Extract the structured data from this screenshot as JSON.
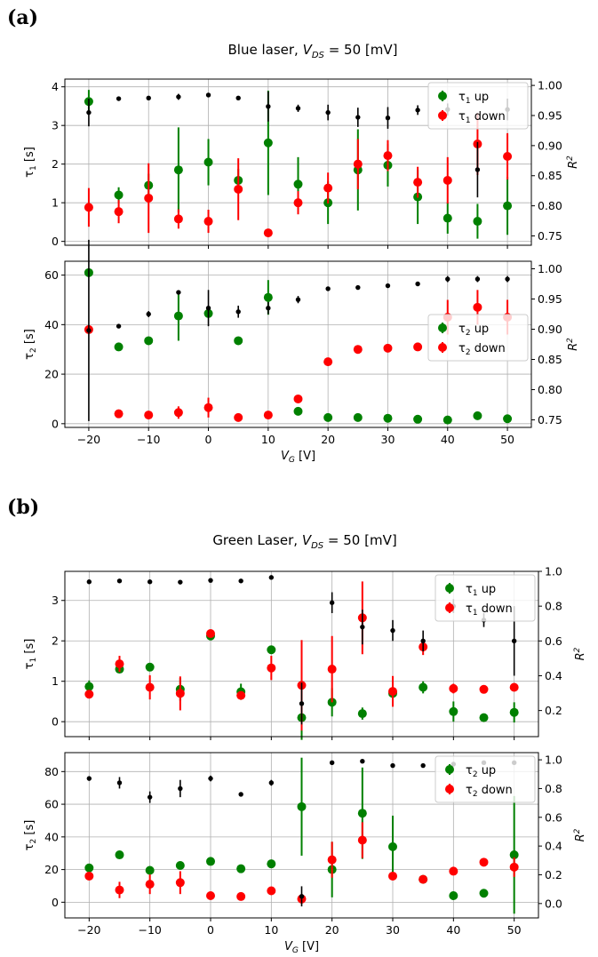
{
  "figure": {
    "panel_labels": [
      "(a)",
      "(b)"
    ],
    "colors": {
      "up": "#008000",
      "down": "#ff0000",
      "r2": "#000000",
      "grid": "#b0b0b0"
    }
  },
  "chart_data": [
    {
      "panel": "(a)",
      "title": "Blue laser, V_DS = 50 [mV]",
      "title_parts": {
        "before": "Blue laser, ",
        "var": "V",
        "sub": "DS",
        "after": " = 50 [mV]"
      },
      "subplots": [
        {
          "type": "scatter",
          "ylabel": {
            "main": "τ",
            "sub": "1",
            "unit": " [s]"
          },
          "ylabel_right": {
            "main": "R",
            "sup": "2"
          },
          "xlim": [
            -24,
            54
          ],
          "ylim": [
            -0.1,
            4.2
          ],
          "ylim_right": [
            0.7345,
            1.0105
          ],
          "x_ticks": [
            -20,
            -10,
            0,
            10,
            20,
            30,
            40,
            50
          ],
          "y_ticks": [
            0,
            1,
            2,
            3,
            4
          ],
          "y_ticks_right": [
            0.75,
            0.8,
            0.85,
            0.9,
            0.95,
            1.0
          ],
          "y_tick_labels_right": [
            "0.75",
            "0.80",
            "0.85",
            "0.90",
            "0.95",
            "1.00"
          ],
          "grid": true,
          "legend": "top-right",
          "x": [
            -20,
            -15,
            -10,
            -5,
            0,
            5,
            10,
            15,
            20,
            25,
            30,
            35,
            40,
            45,
            50
          ],
          "series": [
            {
              "name": "τ1 up",
              "label": {
                "main": "τ",
                "sub": "1",
                "rest": " up"
              },
              "axis": "left",
              "color": "#008000",
              "y": [
                3.62,
                1.2,
                1.45,
                1.85,
                2.05,
                1.58,
                2.55,
                1.48,
                1.0,
                1.85,
                1.97,
                1.15,
                0.6,
                0.52,
                0.92
              ],
              "err": [
                0.3,
                0.2,
                0.3,
                1.1,
                0.6,
                0.3,
                1.35,
                0.7,
                0.55,
                1.05,
                0.55,
                0.7,
                0.4,
                0.45,
                0.75
              ]
            },
            {
              "name": "τ1 down",
              "label": {
                "main": "τ",
                "sub": "1",
                "rest": " down"
              },
              "axis": "left",
              "color": "#ff0000",
              "y": [
                0.88,
                0.77,
                1.12,
                0.58,
                0.52,
                1.35,
                0.22,
                1.0,
                1.38,
                2.0,
                2.22,
                1.53,
                1.58,
                2.52,
                2.2
              ],
              "err": [
                0.5,
                0.3,
                0.9,
                0.25,
                0.3,
                0.8,
                0.05,
                0.3,
                0.4,
                0.65,
                0.4,
                0.4,
                0.6,
                0.8,
                0.6
              ]
            },
            {
              "name": "R2",
              "axis": "right",
              "color": "#000000",
              "small": true,
              "y": [
                0.955,
                0.978,
                0.979,
                0.981,
                0.984,
                0.979,
                0.965,
                0.962,
                0.955,
                0.947,
                0.946,
                0.959,
                0.96,
                0.86,
                0.96
              ],
              "err": [
                0.023,
                0,
                0,
                0.005,
                0,
                0,
                0.025,
                0.006,
                0.013,
                0.016,
                0.018,
                0.008,
                0.01,
                0.046,
                0.018
              ]
            }
          ]
        },
        {
          "type": "scatter",
          "ylabel": {
            "main": "τ",
            "sub": "2",
            "unit": " [s]"
          },
          "ylabel_right": {
            "main": "R",
            "sup": "2"
          },
          "xlim": [
            -24,
            54
          ],
          "ylim": [
            -1.5,
            65.6
          ],
          "ylim_right": [
            0.7375,
            1.0125
          ],
          "x_ticks": [
            -20,
            -10,
            0,
            10,
            20,
            30,
            40,
            50
          ],
          "y_ticks": [
            0,
            20,
            40,
            60
          ],
          "y_ticks_right": [
            0.75,
            0.8,
            0.85,
            0.9,
            0.95,
            1.0
          ],
          "y_tick_labels_right": [
            "0.75",
            "0.80",
            "0.85",
            "0.90",
            "0.95",
            "1.00"
          ],
          "grid": true,
          "legend": "center-right",
          "xlabel": {
            "main": "V",
            "sub": "G",
            "unit": " [V]"
          },
          "x": [
            -20,
            -15,
            -10,
            -5,
            0,
            5,
            10,
            15,
            20,
            25,
            30,
            35,
            40,
            45,
            50
          ],
          "series": [
            {
              "name": "τ2 up",
              "label": {
                "main": "τ",
                "sub": "2",
                "rest": " up"
              },
              "axis": "left",
              "color": "#008000",
              "y": [
                61,
                31,
                33.5,
                43.5,
                44.5,
                33.5,
                51,
                5,
                2.5,
                2.5,
                2.2,
                1.8,
                1.5,
                3.2,
                2
              ],
              "err": [
                1,
                0,
                0,
                10,
                0,
                0,
                7,
                0,
                0,
                0,
                0,
                0,
                0,
                0,
                0
              ]
            },
            {
              "name": "τ2 down",
              "label": {
                "main": "τ",
                "sub": "2",
                "rest": " down"
              },
              "axis": "left",
              "color": "#ff0000",
              "y": [
                38,
                4,
                3.5,
                4.5,
                6.5,
                2.5,
                3.5,
                10,
                25,
                30,
                30.5,
                31,
                43,
                47,
                43
              ],
              "err": [
                0,
                0,
                0,
                2.5,
                4,
                0,
                0,
                0,
                0,
                0,
                0,
                0,
                7,
                7,
                7
              ]
            },
            {
              "name": "R2",
              "axis": "right",
              "color": "#000000",
              "small": true,
              "y": [
                0.898,
                0.905,
                0.925,
                0.961,
                0.935,
                0.929,
                0.935,
                0.949,
                0.967,
                0.969,
                0.972,
                0.975,
                0.983,
                0.983,
                0.983
              ],
              "err": [
                0.15,
                0,
                0.005,
                0,
                0.03,
                0.01,
                0.01,
                0.006,
                0,
                0,
                0,
                0,
                0.005,
                0.005,
                0.005
              ]
            }
          ]
        }
      ]
    },
    {
      "panel": "(b)",
      "title": "Green Laser, V_DS = 50 [mV]",
      "title_parts": {
        "before": "Green Laser, ",
        "var": "V",
        "sub": "DS",
        "after": " = 50 [mV]"
      },
      "subplots": [
        {
          "type": "scatter",
          "ylabel": {
            "main": "τ",
            "sub": "1",
            "unit": " [s]"
          },
          "ylabel_right": {
            "main": "R",
            "sup": "2"
          },
          "xlim": [
            -24,
            54
          ],
          "ylim": [
            -0.37,
            3.72
          ],
          "ylim_right": [
            0.05,
            1.0
          ],
          "x_ticks": [
            -20,
            -10,
            0,
            10,
            20,
            30,
            40,
            50
          ],
          "y_ticks": [
            0,
            1,
            2,
            3
          ],
          "y_ticks_right": [
            0.2,
            0.4,
            0.6,
            0.8,
            1.0
          ],
          "y_tick_labels_right": [
            "0.2",
            "0.4",
            "0.6",
            "0.8",
            "1.0"
          ],
          "grid": true,
          "legend": "top-right",
          "x": [
            -20,
            -15,
            -10,
            -5,
            0,
            5,
            10,
            15,
            20,
            25,
            30,
            35,
            40,
            45,
            50
          ],
          "series": [
            {
              "name": "τ1 up",
              "label": {
                "main": "τ",
                "sub": "1",
                "rest": " up"
              },
              "axis": "left",
              "color": "#008000",
              "y": [
                0.87,
                1.3,
                1.35,
                0.8,
                2.12,
                0.74,
                1.78,
                0.1,
                0.48,
                0.2,
                0.7,
                0.85,
                0.25,
                0.1,
                0.23
              ],
              "err": [
                0.15,
                0.08,
                0.08,
                0.28,
                0.08,
                0.2,
                0.08,
                0.55,
                0.35,
                0.15,
                0.2,
                0.15,
                0.25,
                0,
                0.25
              ]
            },
            {
              "name": "τ1 down",
              "label": {
                "main": "τ",
                "sub": "1",
                "rest": " down"
              },
              "axis": "left",
              "color": "#ff0000",
              "y": [
                0.68,
                1.43,
                0.85,
                0.7,
                2.18,
                0.65,
                1.33,
                0.9,
                1.3,
                2.57,
                0.75,
                1.85,
                0.82,
                0.8,
                0.85
              ],
              "err": [
                0.1,
                0.2,
                0.3,
                0.42,
                0.08,
                0.1,
                0.3,
                1.12,
                0.82,
                0.9,
                0.38,
                0.2,
                0.12,
                0,
                0.05
              ]
            },
            {
              "name": "R2",
              "axis": "right",
              "color": "#000000",
              "small": true,
              "y": [
                0.94,
                0.945,
                0.94,
                0.938,
                0.948,
                0.945,
                0.965,
                0.24,
                0.82,
                0.68,
                0.66,
                0.6,
                0.8,
                0.72,
                0.6
              ],
              "err": [
                0,
                0,
                0,
                0,
                0,
                0,
                0,
                0.12,
                0.06,
                0.1,
                0.06,
                0.06,
                0.04,
                0.04,
                0.2
              ]
            }
          ]
        },
        {
          "type": "scatter",
          "ylabel": {
            "main": "τ",
            "sub": "2",
            "unit": " [s]"
          },
          "ylabel_right": {
            "main": "R",
            "sup": "2"
          },
          "xlim": [
            -24,
            54
          ],
          "ylim": [
            -9.6,
            91.6
          ],
          "ylim_right": [
            -0.1,
            1.05
          ],
          "x_ticks": [
            -20,
            -10,
            0,
            10,
            20,
            30,
            40,
            50
          ],
          "y_ticks": [
            0,
            20,
            40,
            60,
            80
          ],
          "y_ticks_right": [
            0.0,
            0.2,
            0.4,
            0.6,
            0.8,
            1.0
          ],
          "y_tick_labels_right": [
            "0.0",
            "0.2",
            "0.4",
            "0.6",
            "0.8",
            "1.0"
          ],
          "grid": true,
          "legend": "top-right",
          "xlabel": {
            "main": "V",
            "sub": "G",
            "unit": " [V]"
          },
          "x": [
            -20,
            -15,
            -10,
            -5,
            0,
            5,
            10,
            15,
            20,
            25,
            30,
            35,
            40,
            45,
            50
          ],
          "series": [
            {
              "name": "τ2 up",
              "label": {
                "main": "τ",
                "sub": "2",
                "rest": " up"
              },
              "axis": "left",
              "color": "#008000",
              "y": [
                21,
                29,
                19.5,
                22.5,
                25,
                20.5,
                23.5,
                58.5,
                20,
                54.5,
                34,
                14,
                4,
                5.5,
                29
              ],
              "err": [
                0,
                0,
                0,
                2,
                0,
                0,
                0,
                30,
                17,
                28,
                19,
                0,
                0,
                0,
                36
              ]
            },
            {
              "name": "τ2 down",
              "label": {
                "main": "τ",
                "sub": "2",
                "rest": " down"
              },
              "axis": "left",
              "color": "#ff0000",
              "y": [
                16,
                7.5,
                11,
                12,
                4,
                3.5,
                7,
                2,
                26,
                38,
                16,
                14,
                19,
                24.5,
                21.5
              ],
              "err": [
                0,
                5,
                6,
                7,
                0,
                0,
                0,
                3,
                11,
                11,
                0,
                0,
                0,
                0,
                6
              ]
            },
            {
              "name": "R2",
              "axis": "right",
              "color": "#000000",
              "small": true,
              "y": [
                0.87,
                0.84,
                0.74,
                0.8,
                0.87,
                0.76,
                0.84,
                0.05,
                0.98,
                0.99,
                0.96,
                0.96,
                0.97,
                0.98,
                0.98
              ],
              "err": [
                0,
                0.04,
                0.04,
                0.06,
                0.02,
                0,
                0.02,
                0.07,
                0.01,
                0,
                0,
                0,
                0,
                0,
                0
              ]
            }
          ]
        }
      ]
    }
  ]
}
